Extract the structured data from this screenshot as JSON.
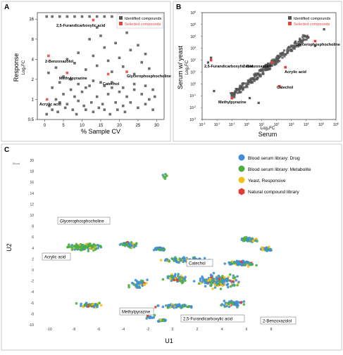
{
  "chart_data": [
    {
      "type": "scatter",
      "panel": "A",
      "xlabel": "% Sample CV",
      "ylabel": "Response",
      "ylabel_sub": "Log₂FC",
      "xlim": [
        -2,
        32
      ],
      "ylim": [
        0.5,
        20
      ],
      "log_y": true,
      "x_ticks": [
        0,
        5,
        10,
        15,
        20,
        25,
        30
      ],
      "y_ticks": [
        0.5,
        1,
        2,
        4,
        8,
        16
      ],
      "y_tick_labels": [
        "0.5",
        "1",
        "2",
        "4",
        "8",
        "16"
      ],
      "legend": [
        "Identified compounds",
        "Selected compounds"
      ],
      "legend_position": "top-right",
      "series": [
        {
          "name": "Identified compounds",
          "color": "#555555",
          "points": [
            [
              0.5,
              0.6
            ],
            [
              1.2,
              0.8
            ],
            [
              2,
              0.7
            ],
            [
              3,
              1
            ],
            [
              3.5,
              0.65
            ],
            [
              4,
              0.9
            ],
            [
              5,
              1.2
            ],
            [
              5.5,
              0.75
            ],
            [
              6,
              0.85
            ],
            [
              7,
              1.4
            ],
            [
              7.5,
              0.7
            ],
            [
              8,
              1.1
            ],
            [
              8.5,
              0.6
            ],
            [
              9,
              0.95
            ],
            [
              10,
              1.3
            ],
            [
              10.5,
              0.8
            ],
            [
              11,
              0.7
            ],
            [
              12,
              1.6
            ],
            [
              12.5,
              0.9
            ],
            [
              13,
              0.65
            ],
            [
              14,
              1.1
            ],
            [
              14.5,
              0.75
            ],
            [
              15,
              1.8
            ],
            [
              15.5,
              0.85
            ],
            [
              16,
              0.7
            ],
            [
              17,
              1.2
            ],
            [
              17.5,
              0.6
            ],
            [
              18,
              1.5
            ],
            [
              19,
              0.9
            ],
            [
              19.5,
              0.7
            ],
            [
              20,
              1.3
            ],
            [
              21,
              0.8
            ],
            [
              21.5,
              0.65
            ],
            [
              22,
              1.1
            ],
            [
              23,
              0.9
            ],
            [
              24,
              1.4
            ],
            [
              25,
              0.75
            ],
            [
              26,
              1.2
            ],
            [
              27,
              0.85
            ],
            [
              28,
              1
            ],
            [
              29,
              0.7
            ],
            [
              29.5,
              1.1
            ],
            [
              1,
              2.5
            ],
            [
              3,
              3
            ],
            [
              5,
              2.2
            ],
            [
              6,
              4
            ],
            [
              8,
              3.5
            ],
            [
              9,
              5
            ],
            [
              11,
              2.8
            ],
            [
              13,
              4.5
            ],
            [
              14,
              3.2
            ],
            [
              16,
              6
            ],
            [
              17,
              3.8
            ],
            [
              18,
              2.6
            ],
            [
              20,
              4.2
            ],
            [
              21,
              3.1
            ],
            [
              23,
              5.5
            ],
            [
              24,
              2.4
            ],
            [
              26,
              3.6
            ],
            [
              27,
              4.8
            ],
            [
              28,
              2.9
            ],
            [
              12,
              8
            ],
            [
              15,
              9
            ],
            [
              19,
              7
            ],
            [
              22,
              10
            ],
            [
              25,
              6.5
            ],
            [
              14,
              12
            ],
            [
              0.5,
              17.5
            ],
            [
              2,
              17.5
            ],
            [
              4,
              17.5
            ],
            [
              6,
              17.5
            ],
            [
              8,
              17.5
            ],
            [
              10,
              17.5
            ],
            [
              12,
              17.5
            ],
            [
              14,
              17.5
            ],
            [
              16,
              17.5
            ],
            [
              18,
              17.5
            ],
            [
              20,
              17.5
            ],
            [
              22,
              17.5
            ],
            [
              24,
              17.5
            ],
            [
              26,
              17.5
            ],
            [
              28,
              17.5
            ],
            [
              2,
              1.5
            ],
            [
              4,
              1.8
            ],
            [
              7,
              2
            ],
            [
              9,
              1.7
            ],
            [
              11,
              1.5
            ],
            [
              13,
              1.9
            ],
            [
              16,
              1.6
            ],
            [
              18,
              1.8
            ],
            [
              21,
              1.5
            ],
            [
              24,
              1.7
            ],
            [
              27,
              1.6
            ],
            [
              29,
              1.4
            ]
          ]
        },
        {
          "name": "Selected compounds",
          "color": "#e8413c",
          "points": [
            [
              1,
              4.5
            ],
            [
              0.6,
              1
            ],
            [
              6,
              2.5
            ],
            [
              17,
              2.4
            ],
            [
              13,
              15.5
            ],
            [
              22,
              2.6
            ]
          ]
        }
      ],
      "annotations": [
        "2,5-Furandicarboxylic acid",
        "2-Benzoxazolol",
        "Methylpyrazine",
        "Catechol",
        "Glycerophosphocholine",
        "Acrylic acid"
      ]
    },
    {
      "type": "scatter",
      "panel": "B",
      "xlabel": "Serum",
      "xlabel_sub": "Log₂FC",
      "ylabel": "Serum w/ yeast",
      "ylabel_sub": "Log₂FC",
      "log_x": true,
      "log_y": true,
      "xlim_exp": [
        -3,
        6
      ],
      "ylim_exp": [
        -3,
        6
      ],
      "tick_exponents": [
        -3,
        -2,
        -1,
        0,
        1,
        2,
        3,
        4,
        5,
        6
      ],
      "tick_base": "10",
      "legend": [
        "Identified compounds",
        "Selected compounds"
      ],
      "legend_position": "top-right",
      "annotations": [
        "Glycerophosphocholine",
        "2,5-Furandicarboxylic acid",
        "2-Benzoxazolol",
        "Acrylic acid",
        "Catechol",
        "Methylpyrazine"
      ]
    },
    {
      "type": "scatter",
      "panel": "C",
      "xlabel": "U1",
      "ylabel": "U2",
      "xlim": [
        -10,
        10
      ],
      "ylim": [
        -10,
        20
      ],
      "x_ticks": [
        -10,
        -8,
        -6,
        -4,
        -2,
        0,
        2,
        4,
        6,
        8
      ],
      "y_ticks": [
        -10,
        -8,
        -6,
        -4,
        -2,
        0,
        2,
        4,
        6,
        8,
        10,
        12,
        14,
        16,
        18,
        20
      ],
      "legend": [
        "Blood serum library: Drug",
        "Blood serum library: Metabolite",
        "Yeast, Responsive",
        "Natural compound library"
      ],
      "legend_colors": [
        "#3f8fd6",
        "#4caf3e",
        "#f2c21b",
        "#e53935"
      ],
      "legend_position": "top-right",
      "annotations": [
        "Glycerophosphocholine",
        "Acrylic acid",
        "Catechol",
        "Methylpyrazine",
        "2,5-Furandicarboxylic acid",
        "2-Benzoxazolol"
      ]
    }
  ],
  "labels": {
    "panel_a": "A",
    "panel_b": "B",
    "panel_c": "C",
    "u2_top": "Blood"
  }
}
